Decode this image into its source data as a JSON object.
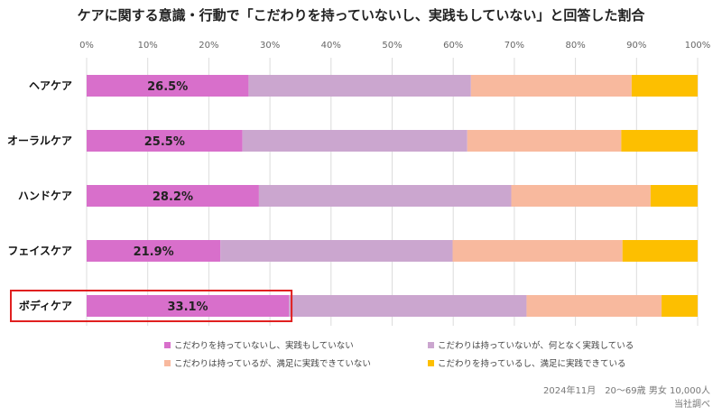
{
  "chart_data": {
    "type": "bar",
    "orientation": "horizontal",
    "stacked": true,
    "title": "ケアに関する意識・行動で「こだわりを持っていないし、実践もしていない」と回答した割合",
    "xlim": [
      0,
      100
    ],
    "x_ticks": [
      "0%",
      "10%",
      "20%",
      "30%",
      "40%",
      "50%",
      "60%",
      "70%",
      "80%",
      "90%",
      "100%"
    ],
    "categories": [
      "ヘアケア",
      "オーラルケア",
      "ハンドケア",
      "フェイスケア",
      "ボディケア"
    ],
    "series": [
      {
        "name": "こだわりを持っていないし、実践もしていない",
        "color": "#d86fcb",
        "values": [
          26.5,
          25.5,
          28.2,
          21.9,
          33.1
        ]
      },
      {
        "name": "こだわりは持っていないが、何となく実践している",
        "color": "#cba6cf",
        "values": [
          36.4,
          36.8,
          41.3,
          38.0,
          38.9
        ]
      },
      {
        "name": "こだわりは持っているが、満足に実践できていない",
        "color": "#f8b99e",
        "values": [
          26.3,
          25.2,
          22.8,
          27.8,
          22.1
        ]
      },
      {
        "name": "こだわりを持っているし、満足に実践できている",
        "color": "#fdbf00",
        "values": [
          10.8,
          12.5,
          7.7,
          12.3,
          5.9
        ]
      }
    ],
    "data_labels": [
      "26.5%",
      "25.5%",
      "28.2%",
      "21.9%",
      "33.1%"
    ],
    "highlight": {
      "category": "ボディケア",
      "color": "#e02020"
    },
    "grid": true,
    "legend_position": "bottom"
  },
  "footnote": {
    "line1": "2024年11月　20～69歳 男女 10,000人",
    "line2": "当社調べ"
  }
}
